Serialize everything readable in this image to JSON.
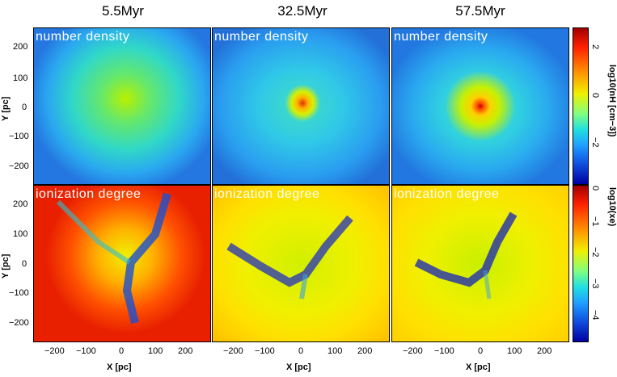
{
  "columns": [
    {
      "title": "5.5Myr"
    },
    {
      "title": "32.5Myr"
    },
    {
      "title": "57.5Myr"
    }
  ],
  "rows": [
    {
      "label": "number density"
    },
    {
      "label": "ionization degree"
    }
  ],
  "axes": {
    "xlabel": "X [pc]",
    "ylabel": "Y [pc]",
    "xticks": [
      "−200",
      "−100",
      "0",
      "100",
      "200"
    ],
    "yticks": [
      "200",
      "100",
      "0",
      "−100",
      "−200"
    ]
  },
  "colorbars": {
    "density": {
      "label": "log10(nH [cm−3])",
      "ticks": [
        "2",
        "0",
        "−2"
      ]
    },
    "ionization": {
      "label": "log10(xe)",
      "ticks": [
        "0",
        "−1",
        "−2",
        "−3",
        "−4"
      ]
    }
  }
}
